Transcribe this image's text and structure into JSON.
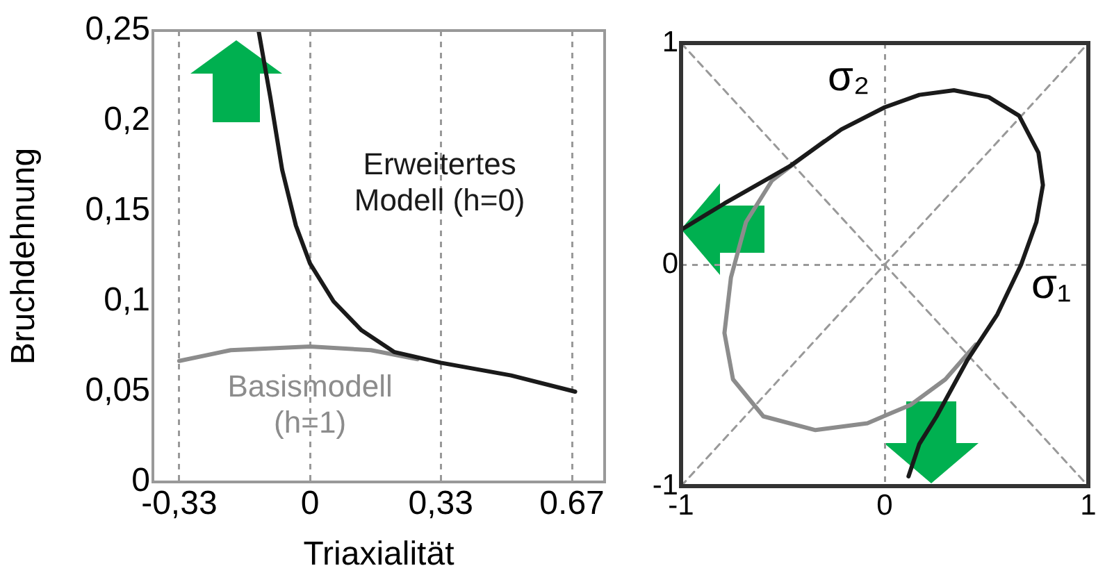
{
  "chart_data": [
    {
      "type": "line",
      "xlabel": "Triaxialität",
      "ylabel": "Bruchdehnung",
      "xlim": [
        -0.4,
        0.75
      ],
      "ylim": [
        0,
        0.25
      ],
      "xticks": [
        {
          "value": -0.333,
          "label": "-0,33"
        },
        0,
        {
          "value": 0.333,
          "label": "0,33"
        },
        {
          "value": 0.667,
          "label": "0.67"
        }
      ],
      "yticks": [
        0,
        {
          "value": 0.05,
          "label": "0,05"
        },
        {
          "value": 0.1,
          "label": "0,1"
        },
        {
          "value": 0.15,
          "label": "0,15"
        },
        {
          "value": 0.2,
          "label": "0,2"
        },
        {
          "value": 0.25,
          "label": "0,25"
        }
      ],
      "grid": "x",
      "legend": false,
      "marker": "none",
      "line_style": "solid",
      "series": [
        {
          "name": "Basismodell (h=1)",
          "color": "#8c8c8c",
          "x": [
            -0.333,
            -0.202,
            0,
            0.155,
            0.274
          ],
          "values": [
            0.067,
            0.073,
            0.075,
            0.073,
            0.068
          ]
        },
        {
          "name": "Erweitertes Modell (h=0)",
          "color": "#1a1a1a",
          "x": [
            -0.131,
            -0.101,
            -0.071,
            -0.036,
            0,
            0.06,
            0.131,
            0.214,
            0.333,
            0.512,
            0.675
          ],
          "values": [
            0.25,
            0.213,
            0.173,
            0.142,
            0.121,
            0.1,
            0.084,
            0.072,
            0.066,
            0.059,
            0.05
          ]
        }
      ]
    },
    {
      "type": "line",
      "xlabel": "σ₁",
      "ylabel": "σ₂",
      "xlim": [
        -1,
        1
      ],
      "ylim": [
        -1,
        1
      ],
      "xticks": [
        -1,
        0,
        1
      ],
      "yticks": [
        -1,
        0,
        1
      ],
      "grid": true,
      "legend": false,
      "marker": "none",
      "line_style": "solid",
      "series": [
        {
          "color": "#999999",
          "line_style": "dashed",
          "x": [
            -1,
            1
          ],
          "values": [
            -1,
            1
          ]
        },
        {
          "color": "#999999",
          "line_style": "dashed",
          "x": [
            -1,
            1
          ],
          "values": [
            1,
            -1
          ]
        },
        {
          "color": "#8c8c8c",
          "x": [
            0.447,
            0.298,
            0.128,
            -0.085,
            -0.34,
            -0.596,
            -0.745,
            -0.787,
            -0.755,
            -0.681,
            -0.553,
            -0.404,
            -0.298
          ],
          "values": [
            -0.361,
            -0.518,
            -0.633,
            -0.716,
            -0.747,
            -0.685,
            -0.518,
            -0.309,
            -0.058,
            0.192,
            0.38,
            0.484,
            0.557
          ]
        },
        {
          "color": "#1a1a1a",
          "x": [
            -1,
            -0.787,
            -0.468,
            -0.213,
            0,
            0.17,
            0.34,
            0.511,
            0.66,
            0.755,
            0.777,
            0.745,
            0.67,
            0.553,
            0.404,
            0.255,
            0.17,
            0.117
          ],
          "values": [
            0.157,
            0.276,
            0.443,
            0.61,
            0.71,
            0.766,
            0.787,
            0.756,
            0.672,
            0.505,
            0.359,
            0.192,
            0,
            -0.225,
            -0.434,
            -0.685,
            -0.81,
            -0.956
          ]
        }
      ]
    }
  ]
}
